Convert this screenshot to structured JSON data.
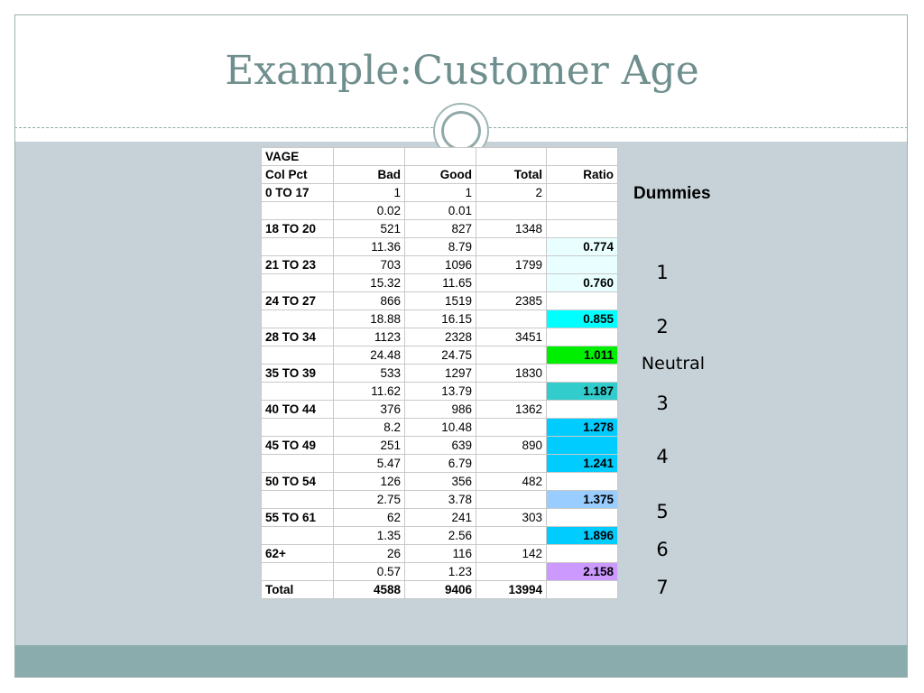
{
  "slide": {
    "title": "Example:Customer Age"
  },
  "table": {
    "header_rows": [
      [
        "VAGE",
        "",
        "",
        "",
        ""
      ],
      [
        "Col Pct",
        "Bad",
        "Good",
        "Total",
        "Ratio"
      ]
    ],
    "rows": [
      [
        "0 TO 17",
        "1",
        "1",
        "2",
        ""
      ],
      [
        "",
        "0.02",
        "0.01",
        "",
        ""
      ],
      [
        "18 TO 20",
        "521",
        "827",
        "1348",
        ""
      ],
      [
        "",
        "11.36",
        "8.79",
        "",
        "0.774"
      ],
      [
        "21 TO 23",
        "703",
        "1096",
        "1799",
        ""
      ],
      [
        "",
        "15.32",
        "11.65",
        "",
        "0.760"
      ],
      [
        "24 TO 27",
        "866",
        "1519",
        "2385",
        ""
      ],
      [
        "",
        "18.88",
        "16.15",
        "",
        "0.855"
      ],
      [
        "28 TO 34",
        "1123",
        "2328",
        "3451",
        ""
      ],
      [
        "",
        "24.48",
        "24.75",
        "",
        "1.011"
      ],
      [
        "35 TO 39",
        "533",
        "1297",
        "1830",
        ""
      ],
      [
        "",
        "11.62",
        "13.79",
        "",
        "1.187"
      ],
      [
        "40 TO 44",
        "376",
        "986",
        "1362",
        ""
      ],
      [
        "",
        "8.2",
        "10.48",
        "",
        "1.278"
      ],
      [
        "45 TO 49",
        "251",
        "639",
        "890",
        ""
      ],
      [
        "",
        "5.47",
        "6.79",
        "",
        "1.241"
      ],
      [
        "50 TO 54",
        "126",
        "356",
        "482",
        ""
      ],
      [
        "",
        "2.75",
        "3.78",
        "",
        "1.375"
      ],
      [
        "55 TO 61",
        "62",
        "241",
        "303",
        ""
      ],
      [
        "",
        "1.35",
        "2.56",
        "",
        "1.896"
      ],
      [
        "62+",
        "26",
        "116",
        "142",
        ""
      ],
      [
        "",
        "0.57",
        "1.23",
        "",
        "2.158"
      ],
      [
        "Total",
        "4588",
        "9406",
        "13994",
        ""
      ]
    ],
    "ratio_colors": {
      "3": "#e9ffff",
      "4": "#e9ffff",
      "5": "#e9ffff",
      "7": "#00ffff",
      "9": "#00ee00",
      "11": "#33cccc",
      "13": "#00ccff",
      "14": "#00ccff",
      "15": "#00ccff",
      "17": "#99ccff",
      "19": "#00ccff",
      "21": "#cc99ff"
    }
  },
  "dummies": {
    "heading": "Dummies",
    "groups": [
      "1",
      "2",
      "Neutral",
      "3",
      "4",
      "5",
      "6",
      "7"
    ]
  },
  "colors": {
    "title": "#6f8f8e",
    "body_background": "#c6d2d8",
    "footer_band": "#8aacac"
  }
}
